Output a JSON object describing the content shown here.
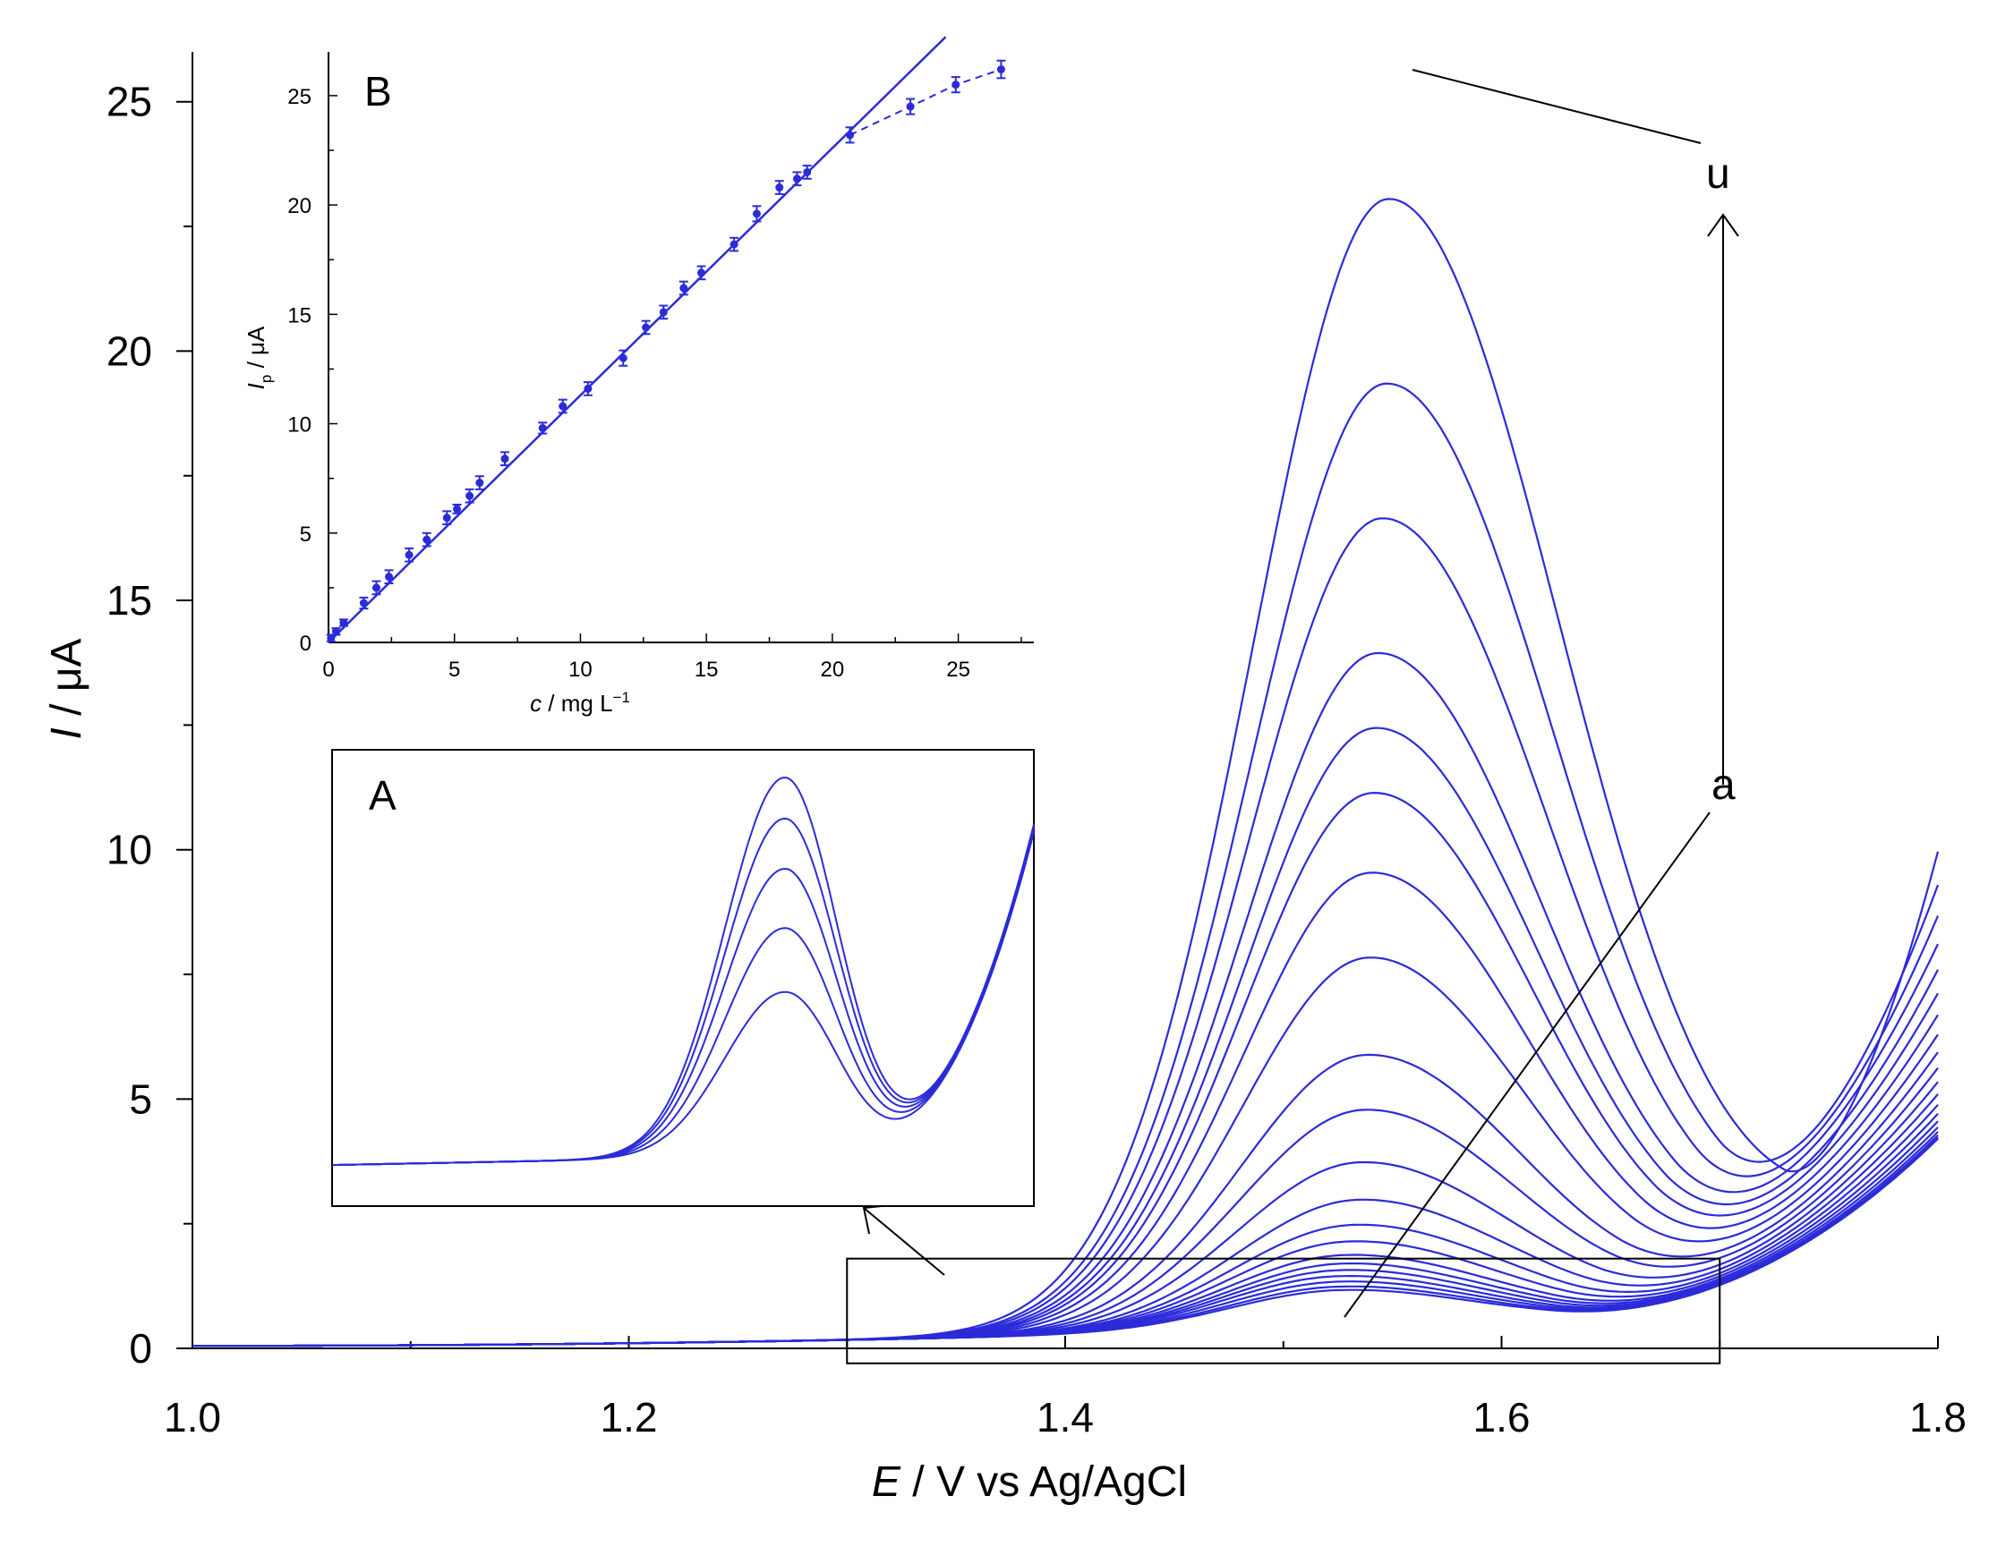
{
  "chart_data": [
    {
      "type": "line",
      "name": "main-voltammograms",
      "xlabel": {
        "italic": "E",
        "rest": " / V vs Ag/AgCl"
      },
      "ylabel": {
        "italic": "I",
        "rest": " / μA"
      },
      "xlim": [
        1.0,
        1.8
      ],
      "ylim": [
        0,
        26
      ],
      "xticks": [
        1.0,
        1.2,
        1.4,
        1.6,
        1.8
      ],
      "xtick_labels": [
        "1.0",
        "1.2",
        "1.4",
        "1.6",
        "1.8"
      ],
      "yticks": [
        0,
        5,
        10,
        15,
        20,
        25
      ],
      "ytick_labels": [
        "0",
        "5",
        "10",
        "15",
        "20",
        "25"
      ],
      "grid": false,
      "line_color": "#2b2bd9",
      "series_labels": {
        "first": "a",
        "last": "u"
      },
      "peak_potentials": [
        1.525,
        1.525,
        1.525,
        1.525,
        1.526,
        1.527,
        1.528,
        1.53,
        1.532,
        1.534,
        1.535,
        1.537,
        1.538,
        1.539,
        1.54,
        1.541,
        1.542,
        1.543,
        1.545,
        1.547,
        1.548
      ],
      "peak_heights_uA": [
        0.75,
        0.82,
        0.92,
        1.03,
        1.15,
        1.28,
        1.45,
        1.72,
        2.05,
        2.55,
        3.3,
        4.35,
        5.45,
        7.4,
        9.1,
        10.7,
        12.0,
        13.5,
        16.2,
        18.9,
        22.6
      ],
      "minimum_potentials": [
        1.6,
        1.605,
        1.61,
        1.615,
        1.62,
        1.62,
        1.625,
        1.63,
        1.635,
        1.64,
        1.645,
        1.65,
        1.655,
        1.66,
        1.665,
        1.67,
        1.675,
        1.68,
        1.69,
        1.7,
        1.73
      ],
      "zoom_window": {
        "x": [
          1.3,
          1.7
        ],
        "y": [
          -0.3,
          1.8
        ]
      }
    },
    {
      "type": "line",
      "name": "inset-A-zoom",
      "panel_label": "A",
      "axes": "none",
      "line_color": "#2b2bd9",
      "peak_heights_relative": [
        0.49,
        0.63,
        0.76,
        0.87,
        0.96
      ]
    },
    {
      "type": "scatter",
      "name": "inset-B-calibration",
      "panel_label": "B",
      "xlabel": {
        "italic": "c",
        "rest": " / mg L",
        "sup": "−1"
      },
      "ylabel": {
        "italic": "I",
        "sub": "p",
        "rest": " / μA"
      },
      "xlim": [
        0,
        28
      ],
      "ylim": [
        0,
        27
      ],
      "xticks": [
        0,
        5,
        10,
        15,
        20,
        25
      ],
      "xtick_labels": [
        "0",
        "5",
        "10",
        "15",
        "20",
        "25"
      ],
      "yticks": [
        0,
        5,
        10,
        15,
        20,
        25
      ],
      "ytick_labels": [
        "0",
        "5",
        "10",
        "15",
        "20",
        "25"
      ],
      "x": [
        0.1,
        0.3,
        0.6,
        1.4,
        1.9,
        2.4,
        3.2,
        3.9,
        4.7,
        5.1,
        5.6,
        6.0,
        7.0,
        8.5,
        9.3,
        10.3,
        11.7,
        12.6,
        13.3,
        14.1,
        14.8,
        16.1,
        17.0,
        17.9,
        18.6,
        19.0,
        20.7,
        23.1,
        24.9,
        26.7
      ],
      "y": [
        0.2,
        0.5,
        0.9,
        1.8,
        2.5,
        3.0,
        4.0,
        4.7,
        5.7,
        6.1,
        6.7,
        7.3,
        8.4,
        9.8,
        10.8,
        11.6,
        13.0,
        14.4,
        15.1,
        16.2,
        16.9,
        18.2,
        19.6,
        20.8,
        21.2,
        21.5,
        23.2,
        24.5,
        25.5,
        26.2
      ],
      "error": [
        0.15,
        0.15,
        0.15,
        0.25,
        0.3,
        0.3,
        0.3,
        0.3,
        0.3,
        0.2,
        0.3,
        0.3,
        0.3,
        0.25,
        0.3,
        0.3,
        0.35,
        0.3,
        0.3,
        0.3,
        0.3,
        0.3,
        0.35,
        0.3,
        0.3,
        0.3,
        0.35,
        0.35,
        0.35,
        0.4
      ],
      "linear_fit": {
        "slope": 1.13,
        "intercept": 0.0,
        "x_range": [
          0,
          24.5
        ]
      },
      "saturation_points_from_index": 26,
      "marker_color": "#2b2bd9"
    }
  ]
}
